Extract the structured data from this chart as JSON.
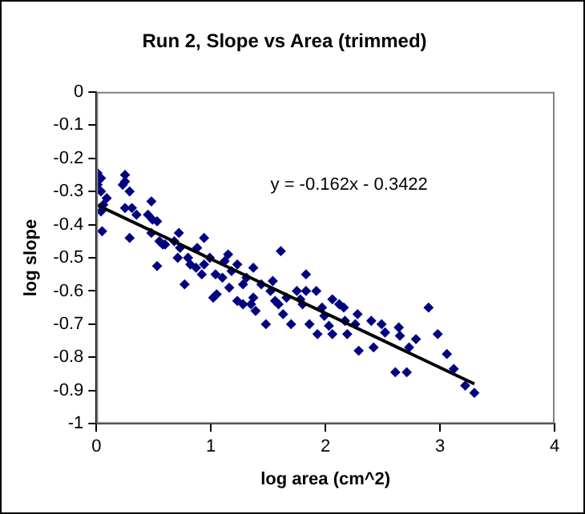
{
  "chart_data": {
    "type": "scatter",
    "title": "Run 2, Slope vs Area (trimmed)",
    "xlabel": "log area (cm^2)",
    "ylabel": "log slope",
    "xlim": [
      0,
      4
    ],
    "xticks": [
      0,
      1,
      2,
      3,
      4
    ],
    "ylim": [
      -1,
      0
    ],
    "yticks": [
      -1,
      -0.9,
      -0.8,
      -0.7,
      -0.6,
      -0.5,
      -0.4,
      -0.3,
      -0.2,
      -0.1,
      0
    ],
    "grid": false,
    "legend": false,
    "marker": "diamond",
    "annotations": [
      "y = -0.162x - 0.3422"
    ],
    "series": [
      {
        "type": "scatter",
        "color": "#000080",
        "x": [
          0.01,
          0.04,
          0.01,
          0.04,
          0.06,
          0.04,
          0.05,
          0.09,
          0.25,
          0.25,
          0.23,
          0.29,
          0.25,
          0.31,
          0.35,
          0.29,
          0.48,
          0.45,
          0.49,
          0.53,
          0.48,
          0.53,
          0.55,
          0.58,
          0.6,
          0.68,
          0.72,
          0.71,
          0.73,
          0.77,
          0.8,
          0.82,
          0.87,
          0.88,
          0.92,
          0.94,
          0.94,
          0.99,
          1.02,
          1.04,
          1.05,
          1.1,
          1.12,
          1.15,
          1.16,
          1.18,
          1.23,
          1.23,
          1.28,
          1.28,
          1.31,
          1.35,
          1.37,
          1.37,
          1.39,
          1.44,
          1.48,
          1.54,
          1.52,
          1.56,
          1.59,
          1.61,
          1.63,
          1.66,
          1.7,
          1.75,
          1.78,
          1.8,
          1.83,
          1.83,
          1.86,
          1.92,
          1.93,
          1.97,
          1.99,
          2.03,
          2.06,
          2.06,
          2.12,
          2.16,
          2.17,
          2.19,
          2.26,
          2.28,
          2.29,
          2.4,
          2.42,
          2.49,
          2.52,
          2.61,
          2.64,
          2.65,
          2.71,
          2.73,
          2.79,
          2.9,
          2.98,
          3.06,
          3.12,
          3.22,
          3.3
        ],
        "values": [
          -0.245,
          -0.26,
          -0.28,
          -0.3,
          -0.34,
          -0.36,
          -0.42,
          -0.32,
          -0.25,
          -0.27,
          -0.28,
          -0.3,
          -0.35,
          -0.35,
          -0.37,
          -0.44,
          -0.33,
          -0.37,
          -0.385,
          -0.39,
          -0.425,
          -0.525,
          -0.45,
          -0.46,
          -0.46,
          -0.45,
          -0.425,
          -0.5,
          -0.47,
          -0.58,
          -0.5,
          -0.52,
          -0.53,
          -0.47,
          -0.55,
          -0.44,
          -0.52,
          -0.5,
          -0.62,
          -0.55,
          -0.61,
          -0.56,
          -0.51,
          -0.49,
          -0.59,
          -0.54,
          -0.52,
          -0.63,
          -0.64,
          -0.58,
          -0.56,
          -0.64,
          -0.53,
          -0.62,
          -0.66,
          -0.58,
          -0.7,
          -0.57,
          -0.6,
          -0.63,
          -0.64,
          -0.48,
          -0.67,
          -0.62,
          -0.7,
          -0.6,
          -0.625,
          -0.64,
          -0.55,
          -0.6,
          -0.7,
          -0.6,
          -0.73,
          -0.65,
          -0.675,
          -0.705,
          -0.73,
          -0.625,
          -0.64,
          -0.65,
          -0.69,
          -0.73,
          -0.7,
          -0.67,
          -0.78,
          -0.69,
          -0.77,
          -0.7,
          -0.725,
          -0.845,
          -0.71,
          -0.735,
          -0.845,
          -0.77,
          -0.745,
          -0.65,
          -0.73,
          -0.79,
          -0.835,
          -0.885,
          -0.907
        ]
      },
      {
        "type": "line",
        "color": "#000000",
        "marker": "none",
        "line_style": "solid",
        "x": [
          0,
          3.3
        ],
        "values": [
          -0.34,
          -0.88
        ]
      }
    ]
  }
}
